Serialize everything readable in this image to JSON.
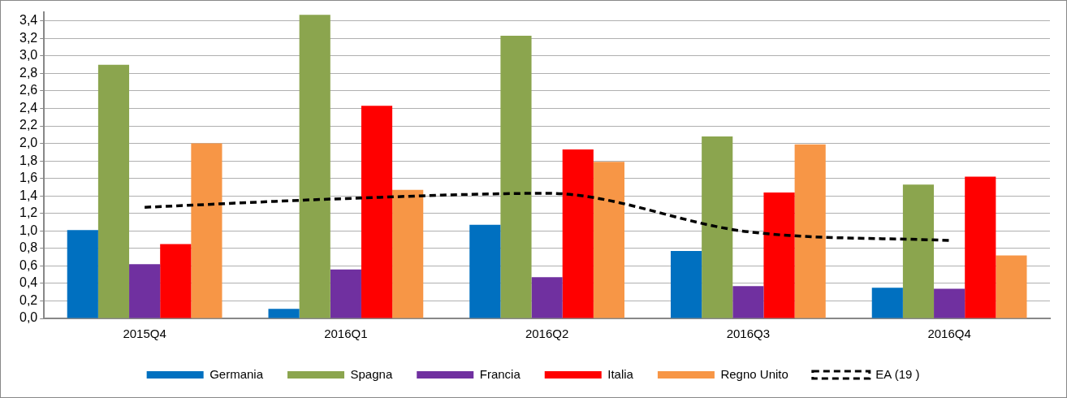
{
  "chart_data": {
    "type": "bar",
    "categories": [
      "2015Q4",
      "2016Q1",
      "2016Q2",
      "2016Q3",
      "2016Q4"
    ],
    "series": [
      {
        "name": "Germania",
        "color": "#0070c0",
        "values": [
          1.01,
          0.11,
          1.07,
          0.77,
          0.35
        ]
      },
      {
        "name": "Spagna",
        "color": "#8ba54e",
        "values": [
          2.9,
          3.47,
          3.23,
          2.08,
          1.53
        ]
      },
      {
        "name": "Francia",
        "color": "#7030a0",
        "values": [
          0.62,
          0.56,
          0.47,
          0.37,
          0.34
        ]
      },
      {
        "name": "Italia",
        "color": "#ff0000",
        "values": [
          0.85,
          2.43,
          1.93,
          1.44,
          1.62
        ]
      },
      {
        "name": "Regno Unito",
        "color": "#f79646",
        "values": [
          2.0,
          1.47,
          1.79,
          1.99,
          0.72
        ]
      },
      {
        "name": "EA (19 )",
        "type": "line",
        "color": "#000000",
        "line_style": "dashed",
        "values": [
          1.27,
          1.37,
          1.43,
          0.99,
          0.89
        ]
      }
    ],
    "ylim": [
      0,
      3.5
    ],
    "yticks": [
      {
        "value": 0,
        "label": "0,0"
      },
      {
        "value": 0.2,
        "label": "0,2"
      },
      {
        "value": 0.4,
        "label": "0,4"
      },
      {
        "value": 0.6,
        "label": "0,6"
      },
      {
        "value": 0.8,
        "label": "0,8"
      },
      {
        "value": 1.0,
        "label": "1,0"
      },
      {
        "value": 1.2,
        "label": "1,2"
      },
      {
        "value": 1.4,
        "label": "1,4"
      },
      {
        "value": 1.6,
        "label": "1,6"
      },
      {
        "value": 1.8,
        "label": "1,8"
      },
      {
        "value": 2.0,
        "label": "2,0"
      },
      {
        "value": 2.2,
        "label": "2,2"
      },
      {
        "value": 2.4,
        "label": "2,4"
      },
      {
        "value": 2.6,
        "label": "2,6"
      },
      {
        "value": 2.8,
        "label": "2,8"
      },
      {
        "value": 3.0,
        "label": "3,0"
      },
      {
        "value": 3.2,
        "label": "3,2"
      },
      {
        "value": 3.4,
        "label": "3,4"
      }
    ],
    "grid": "y",
    "legend": "bottom",
    "marker": "none"
  }
}
